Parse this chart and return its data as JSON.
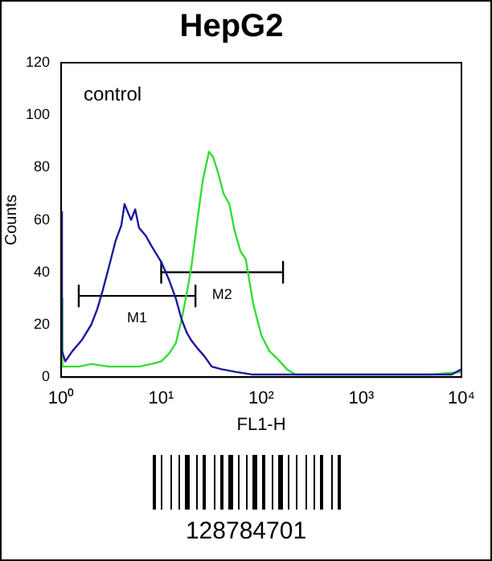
{
  "chart_data": {
    "type": "line",
    "title": "HepG2",
    "xlabel": "FL1-H",
    "ylabel": "Counts",
    "log": "x",
    "xlim": [
      1,
      10000
    ],
    "xticks": [
      {
        "value": 1,
        "label": "10⁰"
      },
      {
        "value": 10,
        "label": "10¹"
      },
      {
        "value": 100,
        "label": "10²"
      },
      {
        "value": 1000,
        "label": "10³"
      },
      {
        "value": 10000,
        "label": "10⁴"
      }
    ],
    "ylim": [
      0,
      120
    ],
    "yticks": [
      0,
      20,
      40,
      60,
      80,
      100,
      120
    ],
    "grid": false,
    "legend": false,
    "marker": "none",
    "line_style": "solid",
    "annotations": [
      "control",
      "128784701"
    ],
    "series": [
      {
        "color": "#1a1a9c",
        "x": [
          1,
          1.02,
          1.1,
          1.3,
          1.6,
          2,
          2.3,
          2.6,
          3,
          3.5,
          4,
          4.3,
          5,
          5.5,
          6,
          7,
          8,
          10,
          12,
          14,
          16,
          18,
          20,
          23,
          27,
          32,
          40,
          55,
          80,
          150,
          300,
          1000,
          3000,
          8000,
          10000
        ],
        "values": [
          63,
          10,
          6,
          10,
          14,
          20,
          26,
          33,
          42,
          52,
          58,
          66,
          60,
          64,
          57,
          54,
          50,
          44,
          37,
          30,
          22,
          17,
          14,
          11,
          8,
          4,
          3,
          2,
          1,
          1,
          1,
          1,
          1,
          1,
          3
        ]
      },
      {
        "color": "#33dd33",
        "x": [
          1,
          1.03,
          1.5,
          2,
          3,
          4,
          6,
          8,
          10,
          12,
          14,
          16,
          18,
          20,
          23,
          26,
          30,
          33,
          37,
          42,
          48,
          54,
          62,
          70,
          83,
          100,
          120,
          145,
          180,
          220,
          500,
          1000,
          5000,
          10000
        ],
        "values": [
          30,
          4,
          4,
          5,
          4,
          4,
          4,
          5,
          6,
          9,
          13,
          22,
          32,
          42,
          60,
          75,
          86,
          84,
          78,
          70,
          66,
          56,
          48,
          45,
          28,
          16,
          10,
          7,
          3,
          1,
          1,
          1,
          1,
          2
        ]
      },
      {
        "name": "M1",
        "color": "#000000",
        "x": [
          1.5,
          1.5,
          1.5,
          22,
          22,
          22
        ],
        "values": [
          35,
          27,
          31,
          31,
          35,
          27
        ]
      },
      {
        "name": "M2",
        "color": "#000000",
        "x": [
          10,
          10,
          10,
          165,
          165,
          165
        ],
        "values": [
          44,
          36,
          40,
          40,
          44,
          36
        ]
      }
    ]
  }
}
